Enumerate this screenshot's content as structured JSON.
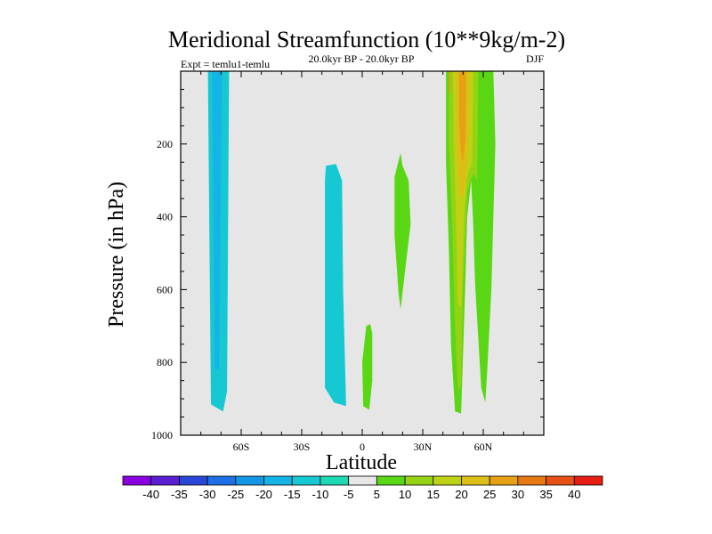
{
  "chart_data": {
    "type": "heatmap",
    "title": "Meridional Streamfunction (10**9kg/m-2)",
    "left_label": "Expt = temlu1-temlu",
    "center_label": "20.0kyr BP - 20.0kyr BP",
    "right_label": "DJF",
    "xlabel": "Latitude",
    "ylabel": "Pressure (in hPa)",
    "xlim": [
      -90,
      90
    ],
    "ylim": [
      1000,
      0
    ],
    "x_ticks": [
      {
        "value": -60,
        "label": "60S"
      },
      {
        "value": -30,
        "label": "30S"
      },
      {
        "value": 0,
        "label": "0"
      },
      {
        "value": 30,
        "label": "30N"
      },
      {
        "value": 60,
        "label": "60N"
      }
    ],
    "y_ticks": [
      {
        "value": 200,
        "label": "200"
      },
      {
        "value": 400,
        "label": "400"
      },
      {
        "value": 600,
        "label": "600"
      },
      {
        "value": 800,
        "label": "800"
      },
      {
        "value": 1000,
        "label": "1000"
      }
    ],
    "background_color": "#e6e6e6",
    "contour_levels": [
      "-40",
      "-35",
      "-30",
      "-25",
      "-20",
      "-15",
      "-10",
      "-5",
      "5",
      "10",
      "15",
      "20",
      "25",
      "30",
      "35",
      "40"
    ],
    "colorbar_colors": [
      "#8a00e0",
      "#5a1ed2",
      "#2a46d6",
      "#1e6ee6",
      "#1496e6",
      "#14b4e6",
      "#16c8d2",
      "#1ed7b4",
      "#e6e6e6",
      "#5ad714",
      "#96d214",
      "#bed214",
      "#dcbe14",
      "#e6a014",
      "#e67814",
      "#e65014",
      "#e61e14"
    ],
    "regions": [
      {
        "name": "south-polar-negative",
        "value": -10,
        "color": "#16c8d2",
        "points": [
          [
            -76.5,
            0
          ],
          [
            -66,
            0
          ],
          [
            -67,
            880
          ],
          [
            -69,
            935
          ],
          [
            -75,
            915
          ]
        ]
      },
      {
        "name": "south-polar-core",
        "value": -15,
        "color": "#14b4e6",
        "points": [
          [
            -74.5,
            0
          ],
          [
            -69.5,
            0
          ],
          [
            -71,
            820
          ],
          [
            -73,
            820
          ]
        ]
      },
      {
        "name": "subtropical-south-negative",
        "value": -10,
        "color": "#16c8d2",
        "points": [
          [
            -18,
            260
          ],
          [
            -13,
            255
          ],
          [
            -10,
            300
          ],
          [
            -9.5,
            600
          ],
          [
            -8,
            920
          ],
          [
            -14,
            910
          ],
          [
            -18.5,
            870
          ],
          [
            -18.5,
            300
          ]
        ]
      },
      {
        "name": "equatorial-positive",
        "value": 5,
        "color": "#5ad714",
        "points": [
          [
            4,
            695
          ],
          [
            2,
            700
          ],
          [
            0,
            800
          ],
          [
            0.5,
            920
          ],
          [
            3.5,
            930
          ],
          [
            5,
            850
          ],
          [
            5,
            720
          ]
        ]
      },
      {
        "name": "northern-subtropic-positive",
        "value": 5,
        "color": "#5ad714",
        "points": [
          [
            19,
            225
          ],
          [
            16,
            290
          ],
          [
            16,
            450
          ],
          [
            18,
            610
          ],
          [
            19,
            655
          ],
          [
            21,
            560
          ],
          [
            24,
            420
          ],
          [
            23,
            300
          ],
          [
            20,
            260
          ]
        ]
      },
      {
        "name": "north-mid-lat-band",
        "value": 5,
        "color": "#5ad714",
        "points": [
          [
            41.5,
            0
          ],
          [
            65,
            0
          ],
          [
            66,
            200
          ],
          [
            64,
            600
          ],
          [
            62,
            820
          ],
          [
            61,
            910
          ],
          [
            59,
            870
          ],
          [
            56,
            590
          ],
          [
            55,
            420
          ],
          [
            54,
            300
          ],
          [
            52,
            400
          ],
          [
            51,
            600
          ],
          [
            49,
            940
          ],
          [
            46,
            935
          ],
          [
            44,
            750
          ],
          [
            43,
            500
          ],
          [
            41.5,
            250
          ]
        ]
      },
      {
        "name": "north-mid-lat-10",
        "value": 10,
        "color": "#96d214",
        "points": [
          [
            43,
            0
          ],
          [
            57.5,
            0
          ],
          [
            57,
            300
          ],
          [
            55,
            280
          ],
          [
            52,
            330
          ],
          [
            50,
            600
          ],
          [
            49,
            860
          ],
          [
            47.5,
            880
          ],
          [
            46,
            700
          ],
          [
            44.5,
            400
          ],
          [
            43,
            200
          ]
        ]
      },
      {
        "name": "north-mid-lat-15",
        "value": 15,
        "color": "#bed214",
        "points": [
          [
            45,
            0
          ],
          [
            55,
            0
          ],
          [
            54.5,
            250
          ],
          [
            52,
            290
          ],
          [
            50.5,
            400
          ],
          [
            49,
            650
          ],
          [
            47.5,
            640
          ],
          [
            46.5,
            400
          ],
          [
            45.5,
            200
          ]
        ]
      },
      {
        "name": "north-mid-lat-20",
        "value": 20,
        "color": "#dcbe14",
        "points": [
          [
            46.5,
            0
          ],
          [
            53,
            0
          ],
          [
            53,
            150
          ],
          [
            51.5,
            290
          ],
          [
            50,
            350
          ],
          [
            48.5,
            340
          ],
          [
            47,
            240
          ]
        ]
      },
      {
        "name": "north-mid-lat-25",
        "value": 25,
        "color": "#e6a014",
        "points": [
          [
            48,
            0
          ],
          [
            51.5,
            0
          ],
          [
            51.2,
            180
          ],
          [
            50,
            250
          ],
          [
            48.8,
            220
          ],
          [
            48,
            130
          ]
        ]
      },
      {
        "name": "north-mid-lat-upper-25",
        "value": 25,
        "color": "#e6a014",
        "points": [
          [
            43,
            0
          ],
          [
            44,
            0
          ],
          [
            43.8,
            60
          ],
          [
            43,
            60
          ]
        ]
      }
    ]
  }
}
